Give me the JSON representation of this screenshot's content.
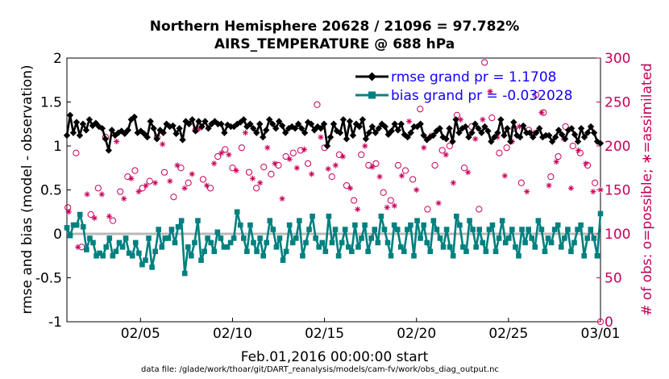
{
  "chart_data": {
    "type": "line",
    "title": "Northern Hemisphere 20628 / 21096 = 97.782%",
    "subtitle": "AIRS_TEMPERATURE @ 688 hPa",
    "xlabel": "Feb.01,2016 00:00:00 start",
    "ylabel": "rmse and bias (model - observation)",
    "ylabel_right": "# of obs: o=possible; ∗=assimilated",
    "footnote": "data file: /glade/work/thoar/git/DART_reanalysis/models/cam-fv/work/obs_diag_output.nc",
    "xlim": [
      1.0,
      30.0
    ],
    "ylim": [
      -1,
      2
    ],
    "ylim_right": [
      0,
      300
    ],
    "xticks": [
      {
        "x": 5,
        "label": "02/05"
      },
      {
        "x": 10,
        "label": "02/10"
      },
      {
        "x": 15,
        "label": "02/15"
      },
      {
        "x": 20,
        "label": "02/20"
      },
      {
        "x": 25,
        "label": "02/25"
      },
      {
        "x": 30,
        "label": "03/01"
      }
    ],
    "yticks": [
      {
        "v": 2,
        "label": "2"
      },
      {
        "v": 1.5,
        "label": "1.5"
      },
      {
        "v": 1,
        "label": "1"
      },
      {
        "v": 0.5,
        "label": "0.5"
      },
      {
        "v": 0,
        "label": "0"
      },
      {
        "v": -0.5,
        "label": "-0.5"
      },
      {
        "v": -1,
        "label": "-1"
      }
    ],
    "yticks_right": [
      {
        "v": 300,
        "label": "300"
      },
      {
        "v": 250,
        "label": "250"
      },
      {
        "v": 200,
        "label": "200"
      },
      {
        "v": 150,
        "label": "150"
      },
      {
        "v": 100,
        "label": "100"
      },
      {
        "v": 50,
        "label": "50"
      },
      {
        "v": 0,
        "label": "0"
      }
    ],
    "legend": {
      "placement": "top-right"
    },
    "series": [
      {
        "name": "rmse grand pr = 1.1708",
        "axis": "left",
        "color": "#000000",
        "marker": "diamond",
        "y": [
          1.12,
          1.35,
          1.15,
          1.27,
          1.12,
          1.25,
          1.18,
          1.3,
          1.23,
          1.26,
          1.22,
          1.2,
          1.08,
          0.95,
          1.18,
          1.12,
          1.15,
          1.17,
          1.14,
          1.18,
          1.3,
          1.33,
          1.15,
          1.17,
          1.14,
          1.1,
          1.28,
          1.2,
          1.08,
          1.18,
          1.15,
          1.25,
          1.22,
          1.23,
          1.14,
          1.2,
          1.07,
          1.28,
          1.25,
          1.3,
          1.17,
          1.28,
          1.22,
          1.28,
          1.2,
          1.25,
          1.28,
          1.25,
          1.25,
          1.15,
          1.24,
          1.22,
          1.22,
          1.25,
          1.27,
          1.3,
          1.22,
          1.25,
          1.2,
          1.15,
          1.25,
          1.1,
          1.18,
          1.3,
          1.25,
          1.2,
          1.28,
          1.23,
          1.15,
          1.2,
          1.22,
          1.2,
          1.25,
          1.2,
          1.15,
          1.27,
          1.25,
          1.18,
          1.22,
          1.2,
          1.25,
          1.0,
          1.1,
          1.25,
          1.17,
          1.15,
          1.3,
          1.08,
          1.28,
          1.12,
          1.25,
          1.22,
          1.3,
          1.08,
          1.15,
          1.22,
          1.15,
          1.2,
          1.25,
          1.22,
          1.13,
          1.17,
          1.25,
          1.18,
          1.25,
          1.13,
          1.1,
          1.15,
          1.22,
          1.22,
          1.25,
          1.12,
          1.07,
          1.1,
          1.12,
          1.17,
          1.2,
          1.1,
          1.08,
          1.2,
          1.05,
          1.3,
          1.15,
          1.2,
          1.22,
          1.1,
          1.15,
          1.25,
          1.2,
          1.15,
          1.22,
          1.17,
          1.05,
          1.1,
          1.15,
          1.3,
          1.12,
          1.2,
          1.05,
          1.27,
          1.12,
          1.1,
          1.23,
          1.15,
          1.15,
          1.1,
          1.15,
          1.2,
          1.1,
          1.12,
          1.12,
          1.05,
          1.1,
          1.18,
          1.13,
          1.08,
          1.18,
          1.2,
          1.13,
          1.05,
          1.2,
          1.1,
          1.15,
          1.22,
          1.15,
          1.05,
          1.03
        ]
      },
      {
        "name": "bias grand pr = -0.032028",
        "axis": "left",
        "color": "#00807f",
        "marker": "square",
        "y": [
          0.07,
          -0.02,
          0.1,
          0.1,
          0.22,
          0.08,
          -0.18,
          -0.05,
          -0.1,
          -0.25,
          -0.22,
          -0.25,
          -0.15,
          -0.05,
          -0.25,
          -0.2,
          -0.1,
          -0.15,
          -0.05,
          -0.22,
          -0.25,
          -0.1,
          -0.22,
          -0.35,
          -0.3,
          -0.05,
          -0.38,
          -0.2,
          0.05,
          -0.15,
          -0.05,
          -0.05,
          0.05,
          -0.1,
          0.08,
          0.15,
          -0.45,
          -0.15,
          -0.25,
          -0.1,
          0.15,
          -0.3,
          -0.2,
          -0.05,
          -0.1,
          -0.2,
          0.02,
          -0.05,
          -0.15,
          -0.15,
          -0.1,
          -0.05,
          0.25,
          0.1,
          -0.05,
          -0.2,
          0.1,
          -0.1,
          -0.2,
          -0.05,
          -0.25,
          -0.1,
          0.15,
          0.05,
          -0.15,
          -0.05,
          -0.3,
          -0.2,
          0.1,
          -0.1,
          -0.05,
          0.15,
          -0.25,
          -0.1,
          0.05,
          0.2,
          -0.05,
          -0.15,
          -0.1,
          -0.2,
          0.2,
          -0.1,
          0.05,
          -0.25,
          -0.1,
          0.05,
          -0.15,
          -0.2,
          0.1,
          -0.15,
          -0.05,
          0.1,
          -0.2,
          -0.05,
          0.05,
          -0.1,
          0.2,
          0.05,
          -0.1,
          -0.25,
          0.1,
          0.05,
          -0.15,
          -0.2,
          0.05,
          0.1,
          -0.25,
          0.15,
          -0.05,
          0.1,
          -0.1,
          -0.2,
          0.15,
          0.05,
          -0.05,
          -0.15,
          0.05,
          -0.15,
          -0.25,
          0.2,
          0.1,
          -0.15,
          -0.2,
          0.15,
          0.05,
          -0.15,
          0.05,
          -0.1,
          -0.2,
          0.05,
          0.1,
          -0.2,
          -0.05,
          0.15,
          -0.1,
          -0.05,
          0.05,
          -0.15,
          -0.25,
          0.05,
          -0.1,
          0.05,
          -0.05,
          -0.15,
          0.15,
          0.05,
          -0.2,
          -0.05,
          -0.1,
          0.05,
          0.1,
          -0.15,
          -0.05,
          0.05,
          -0.2,
          -0.1,
          0.05,
          0.1,
          -0.25,
          -0.05,
          0.05,
          -0.05,
          -0.25,
          0.23
        ]
      },
      {
        "name": "possible",
        "axis": "right",
        "color": "#c8005a",
        "marker": "circle",
        "x": [
          1.05,
          1.5,
          1.8,
          2.3,
          2.7,
          3.1,
          3.5,
          3.9,
          4.3,
          4.7,
          5.1,
          5.5,
          5.9,
          6.3,
          6.8,
          7.2,
          7.6,
          8.0,
          8.4,
          8.8,
          9.2,
          9.6,
          10.0,
          10.5,
          10.9,
          11.3,
          11.7,
          12.1,
          12.5,
          12.9,
          13.3,
          13.7,
          14.1,
          14.6,
          15.0,
          15.4,
          15.8,
          16.2,
          16.6,
          17.0,
          17.4,
          17.8,
          18.2,
          18.6,
          19.0,
          19.4,
          19.8,
          20.2,
          20.6,
          21.0,
          21.4,
          21.8,
          22.2,
          22.6,
          23.0,
          23.4,
          23.7,
          24.1,
          24.5,
          24.9,
          25.3,
          25.7,
          26.1,
          26.5,
          26.9,
          27.3,
          27.7,
          28.1,
          28.5,
          28.9,
          29.3,
          29.7,
          30.0
        ],
        "y": [
          130,
          192,
          85,
          122,
          152,
          210,
          115,
          148,
          165,
          172,
          152,
          160,
          210,
          170,
          142,
          175,
          158,
          218,
          162,
          152,
          188,
          196,
          175,
          198,
          170,
          152,
          176,
          168,
          178,
          188,
          192,
          195,
          180,
          247,
          198,
          165,
          190,
          155,
          138,
          190,
          178,
          180,
          147,
          138,
          178,
          172,
          162,
          242,
          128,
          178,
          195,
          200,
          235,
          175,
          222,
          128,
          295,
          232,
          192,
          198,
          220,
          158,
          218,
          258,
          238,
          165,
          188,
          222,
          200,
          192,
          178,
          158,
          0
        ]
      },
      {
        "name": "assimilated",
        "axis": "right",
        "color": "#c8005a",
        "marker": "asterisk",
        "x": [
          1.1,
          1.6,
          2.1,
          2.5,
          2.9,
          3.3,
          3.7,
          4.1,
          4.5,
          4.9,
          5.3,
          5.8,
          6.2,
          6.6,
          7.0,
          7.4,
          7.8,
          8.2,
          8.6,
          9.0,
          9.4,
          9.8,
          10.2,
          10.7,
          11.1,
          11.5,
          11.9,
          12.3,
          12.7,
          13.1,
          13.5,
          13.9,
          14.3,
          14.8,
          15.2,
          15.6,
          16.0,
          16.4,
          16.8,
          17.2,
          17.6,
          18.0,
          18.4,
          18.8,
          19.2,
          19.6,
          20.0,
          20.4,
          20.8,
          21.2,
          21.6,
          22.0,
          22.4,
          22.8,
          23.2,
          23.6,
          24.0,
          24.4,
          24.8,
          25.2,
          25.6,
          26.0,
          26.4,
          26.8,
          27.2,
          27.6,
          28.0,
          28.4,
          28.8,
          29.2,
          29.6,
          30.0
        ],
        "y": [
          125,
          85,
          145,
          118,
          145,
          120,
          205,
          140,
          163,
          148,
          155,
          158,
          202,
          160,
          178,
          152,
          168,
          220,
          155,
          180,
          192,
          190,
          172,
          215,
          163,
          158,
          198,
          180,
          140,
          185,
          175,
          196,
          168,
          210,
          174,
          178,
          188,
          152,
          128,
          200,
          176,
          165,
          130,
          132,
          166,
          228,
          150,
          198,
          212,
          135,
          190,
          158,
          230,
          170,
          208,
          230,
          262,
          210,
          166,
          205,
          222,
          148,
          215,
          238,
          155,
          182,
          208,
          152,
          195,
          180,
          148,
          150
        ]
      }
    ]
  }
}
